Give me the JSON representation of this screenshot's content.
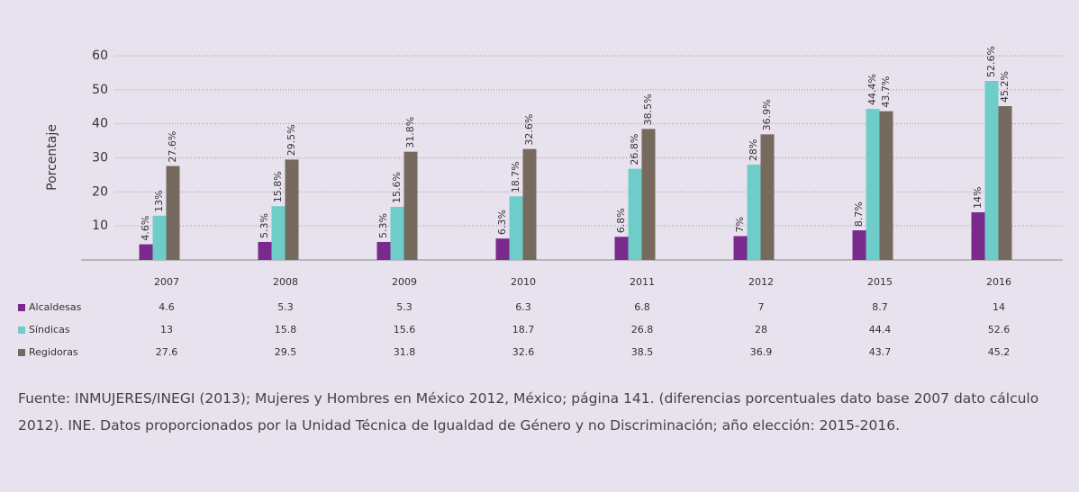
{
  "chart_data": {
    "type": "bar",
    "y_label": "Porcentaje",
    "categories": [
      "2007",
      "2008",
      "2009",
      "2010",
      "2011",
      "2012",
      "2015",
      "2016"
    ],
    "series": [
      {
        "name": "Alcaldesas",
        "color": "#7a2a8c",
        "values": [
          4.6,
          5.3,
          5.3,
          6.3,
          6.8,
          7,
          8.7,
          14
        ],
        "value_labels": [
          "4.6%",
          "5.3%",
          "5.3%",
          "6.3%",
          "6.8%",
          "7%",
          "8.7%",
          "14%"
        ]
      },
      {
        "name": "Síndicas",
        "color": "#6ecdc8",
        "values": [
          13,
          15.8,
          15.6,
          18.7,
          26.8,
          28,
          44.4,
          52.6
        ],
        "value_labels": [
          "13%",
          "15.8%",
          "15.6%",
          "18.7%",
          "26.8%",
          "28%",
          "44.4%",
          "52.6%"
        ]
      },
      {
        "name": "Regidoras",
        "color": "#756a5d",
        "values": [
          27.6,
          29.5,
          31.8,
          32.6,
          38.5,
          36.9,
          43.7,
          45.2
        ],
        "value_labels": [
          "27.6%",
          "29.5%",
          "31.8%",
          "32.6%",
          "38.5%",
          "36.9%",
          "43.7%",
          "45.2%"
        ]
      }
    ],
    "ylim": [
      0,
      60
    ],
    "yticks": [
      10,
      20,
      30,
      40,
      50,
      60
    ],
    "grid": true
  },
  "footnote": "Fuente: INMUJERES/INEGI (2013); Mujeres y Hombres en México 2012, México; página 141. (diferencias porcentuales dato base 2007 dato cálculo 2012). INE. Datos proporcionados por la Unidad Técnica de Igualdad de Género y no Discriminación; año elección: 2015-2016."
}
